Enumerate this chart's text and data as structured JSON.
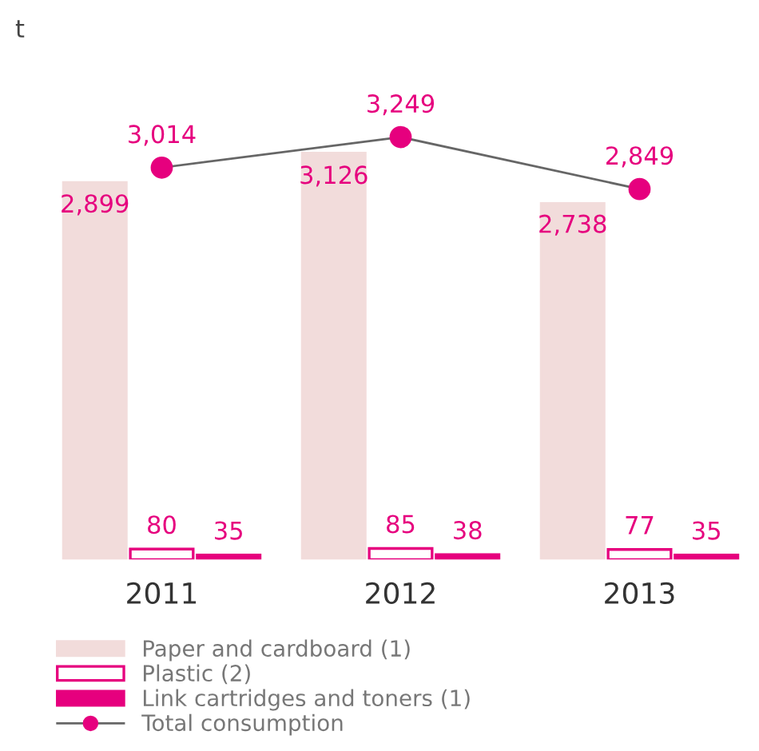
{
  "chart_data": {
    "type": "bar",
    "annotations": [
      "t"
    ],
    "categories": [
      "2011",
      "2012",
      "2013"
    ],
    "series": [
      {
        "name": "Paper and cardboard (1)",
        "color": "#f2dcdb",
        "values": [
          2899,
          3126,
          2738
        ],
        "value_labels": [
          "2,899",
          "3,126",
          "2,738"
        ]
      },
      {
        "name": "Plastic (2)",
        "color": "#ffffff",
        "values": [
          80,
          85,
          77
        ],
        "value_labels": [
          "80",
          "85",
          "77"
        ]
      },
      {
        "name": "Link cartridges and toners (1)",
        "color": "#e6007e",
        "values": [
          35,
          38,
          35
        ],
        "value_labels": [
          "35",
          "38",
          "35"
        ]
      },
      {
        "name": "Total consumption",
        "type": "line",
        "color": "#e6007e",
        "marker": "circle",
        "values": [
          3014,
          3249,
          2849
        ],
        "value_labels": [
          "3,014",
          "3,249",
          "2,849"
        ]
      }
    ],
    "legend": "bottom",
    "grid": false
  }
}
